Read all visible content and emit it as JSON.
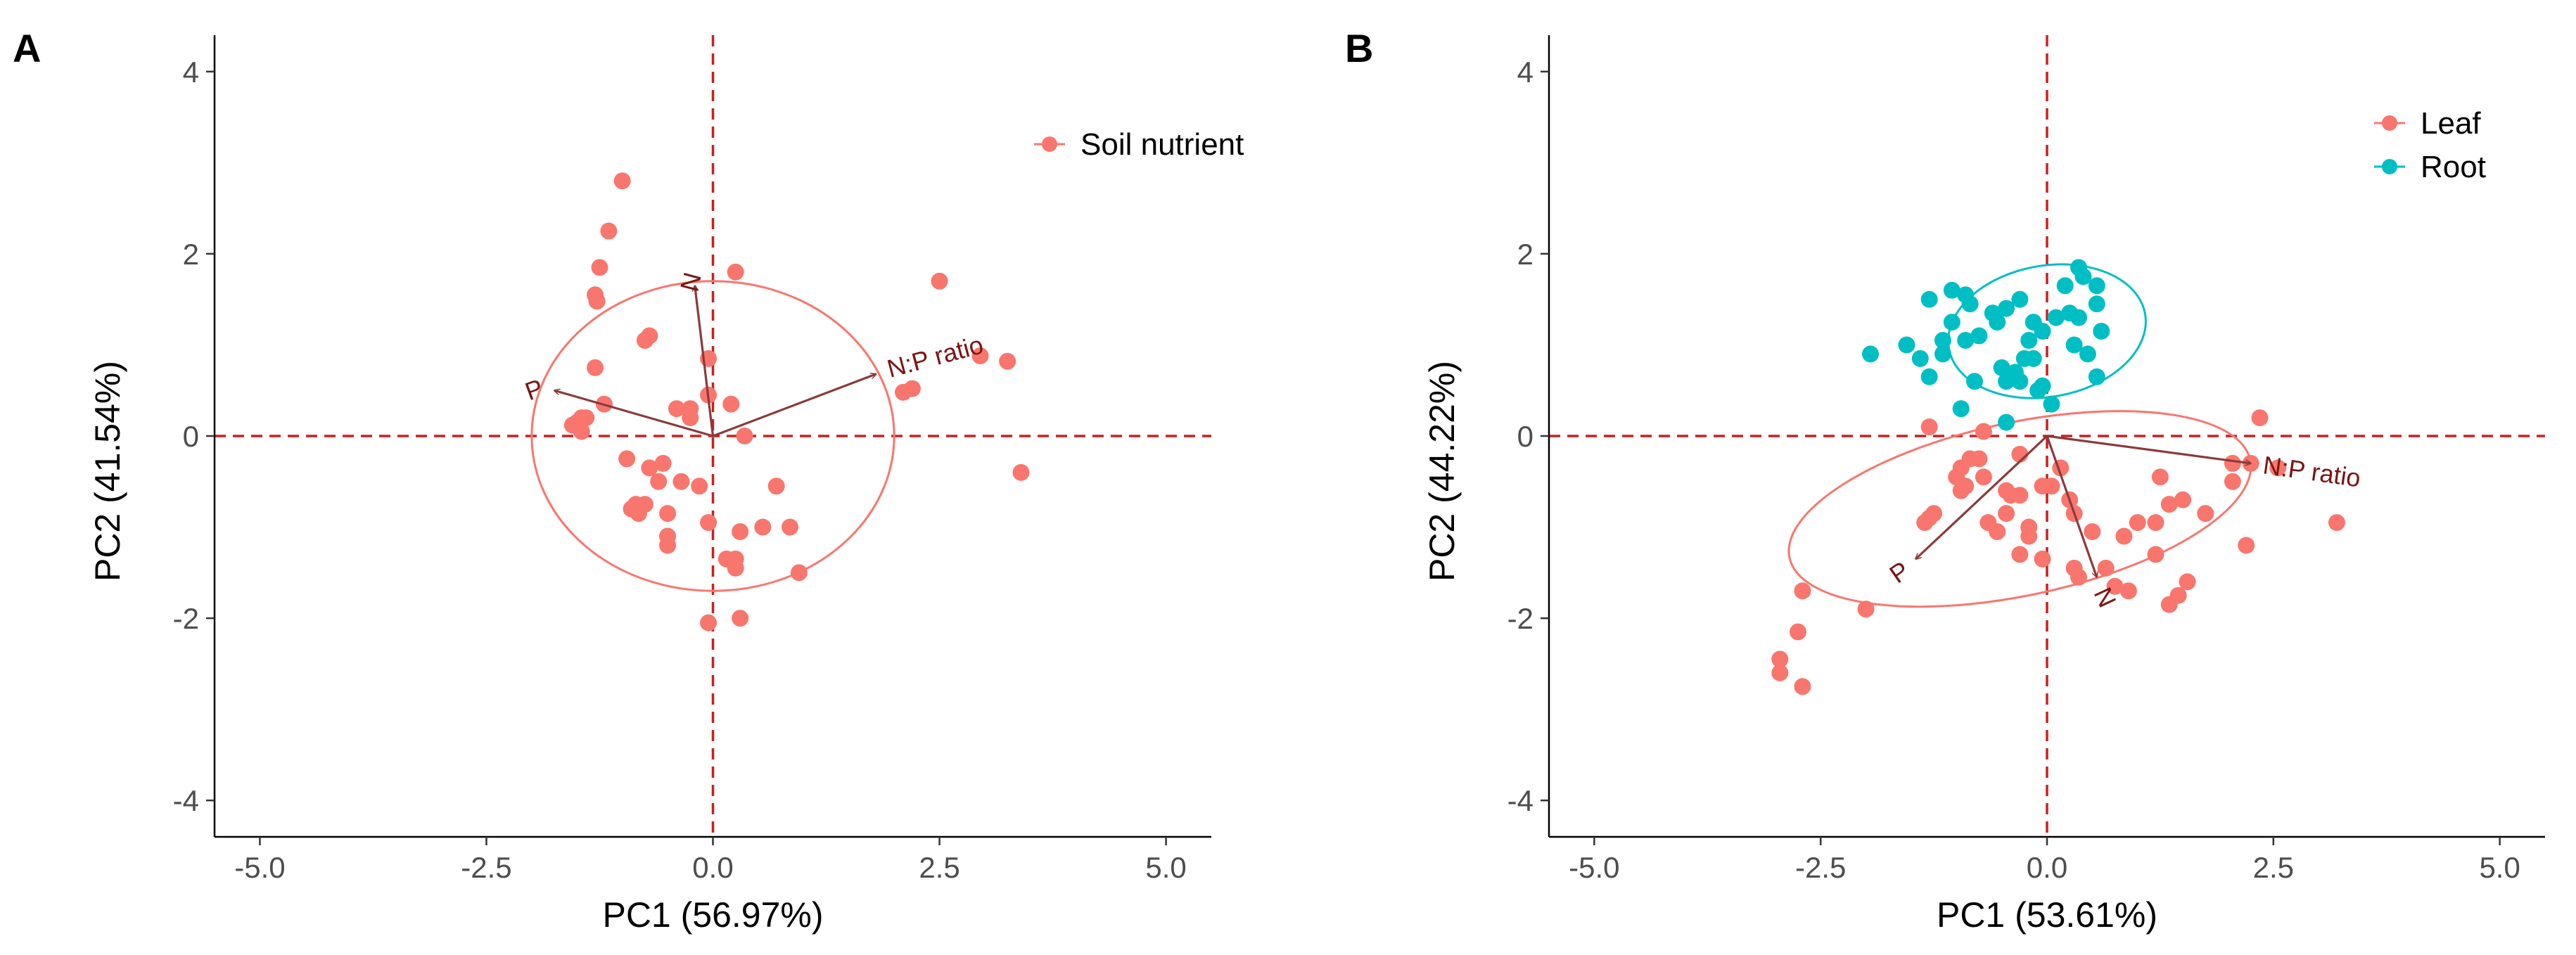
{
  "chart_data": [
    {
      "type": "scatter",
      "panel": "A",
      "xlabel": "PC1 (56.97%)",
      "ylabel": "PC2 (41.54%)",
      "xlim": [
        -5.5,
        5.5
      ],
      "ylim": [
        -4.4,
        4.4
      ],
      "xticks": [
        -5.0,
        -2.5,
        0.0,
        2.5,
        5.0
      ],
      "yticks": [
        -4,
        -2,
        0,
        2,
        4
      ],
      "xtick_labels": [
        "-5.0",
        "-2.5",
        "0.0",
        "2.5",
        "5.0"
      ],
      "ytick_labels": [
        "-4",
        "-2",
        "0",
        "2",
        "4"
      ],
      "reference_lines": {
        "x": 0,
        "y": 0,
        "color": "#cc0000",
        "style": "dashed"
      },
      "legend_position": "top-right",
      "series": [
        {
          "name": "Soil nutrient",
          "color": "#f8766d",
          "points": [
            [
              -1.0,
              2.8
            ],
            [
              -1.15,
              2.25
            ],
            [
              -1.25,
              1.85
            ],
            [
              -1.3,
              1.55
            ],
            [
              -1.28,
              1.48
            ],
            [
              -1.3,
              0.75
            ],
            [
              -1.2,
              0.35
            ],
            [
              -1.45,
              0.2
            ],
            [
              -1.5,
              0.15
            ],
            [
              -1.4,
              0.2
            ],
            [
              -1.55,
              0.12
            ],
            [
              -1.45,
              0.05
            ],
            [
              -0.7,
              1.1
            ],
            [
              -0.75,
              1.05
            ],
            [
              -0.4,
              0.3
            ],
            [
              -0.25,
              0.3
            ],
            [
              -0.25,
              0.2
            ],
            [
              -0.95,
              -0.25
            ],
            [
              -0.55,
              -0.3
            ],
            [
              -0.7,
              -0.35
            ],
            [
              -0.6,
              -0.5
            ],
            [
              -0.35,
              -0.5
            ],
            [
              -0.85,
              -0.75
            ],
            [
              -0.9,
              -0.8
            ],
            [
              -0.82,
              -0.85
            ],
            [
              -0.75,
              -0.75
            ],
            [
              -0.5,
              -0.85
            ],
            [
              -0.5,
              -1.1
            ],
            [
              -0.5,
              -1.2
            ],
            [
              -0.15,
              -0.55
            ],
            [
              0.2,
              0.35
            ],
            [
              0.35,
              0.0
            ],
            [
              0.25,
              1.8
            ],
            [
              -0.05,
              0.85
            ],
            [
              -0.05,
              0.45
            ],
            [
              -0.05,
              -0.95
            ],
            [
              0.15,
              -1.35
            ],
            [
              0.25,
              -1.35
            ],
            [
              0.25,
              -1.45
            ],
            [
              0.3,
              -1.05
            ],
            [
              0.55,
              -1.0
            ],
            [
              0.7,
              -0.55
            ],
            [
              0.85,
              -1.0
            ],
            [
              0.95,
              -1.5
            ],
            [
              -0.05,
              -2.05
            ],
            [
              0.3,
              -2.0
            ],
            [
              2.1,
              0.48
            ],
            [
              2.2,
              0.52
            ],
            [
              2.5,
              1.7
            ],
            [
              2.95,
              0.88
            ],
            [
              3.25,
              0.82
            ],
            [
              3.4,
              -0.4
            ]
          ]
        }
      ],
      "ellipses": [
        {
          "series": "Soil nutrient",
          "center": [
            0.0,
            0.0
          ],
          "semi_x": 2.0,
          "semi_y": 1.7,
          "color": "#f8766d"
        }
      ],
      "loadings": [
        {
          "label": "N",
          "x": -0.2,
          "y": 1.65
        },
        {
          "label": "P",
          "x": -1.75,
          "y": 0.5
        },
        {
          "label": "N:P ratio",
          "x": 1.8,
          "y": 0.68
        }
      ],
      "loading_label_angles_deg": [
        -75,
        -20,
        -15
      ],
      "loading_color": "#8b3a3a"
    },
    {
      "type": "scatter",
      "panel": "B",
      "xlabel": "PC1 (53.61%)",
      "ylabel": "PC2 (44.22%)",
      "xlim": [
        -5.5,
        5.5
      ],
      "ylim": [
        -4.4,
        4.4
      ],
      "xticks": [
        -5.0,
        -2.5,
        0.0,
        2.5,
        5.0
      ],
      "yticks": [
        -4,
        -2,
        0,
        2,
        4
      ],
      "xtick_labels": [
        "-5.0",
        "-2.5",
        "0.0",
        "2.5",
        "5.0"
      ],
      "ytick_labels": [
        "-4",
        "-2",
        "0",
        "2",
        "4"
      ],
      "reference_lines": {
        "x": 0,
        "y": 0,
        "color": "#cc0000",
        "style": "dashed"
      },
      "legend_position": "top-right",
      "series": [
        {
          "name": "Leaf",
          "color": "#f8766d",
          "points": [
            [
              -1.3,
              -0.9
            ],
            [
              -1.25,
              -0.85
            ],
            [
              -1.0,
              -0.45
            ],
            [
              -0.9,
              -0.55
            ],
            [
              -0.95,
              -0.35
            ],
            [
              -0.7,
              -0.45
            ],
            [
              -0.85,
              -0.25
            ],
            [
              -0.75,
              -0.25
            ],
            [
              -0.3,
              -0.2
            ],
            [
              -0.45,
              -0.6
            ],
            [
              -0.4,
              -0.65
            ],
            [
              -0.3,
              -0.65
            ],
            [
              -0.45,
              -0.85
            ],
            [
              -0.65,
              -0.95
            ],
            [
              -0.55,
              -1.05
            ],
            [
              -0.2,
              -1.0
            ],
            [
              -0.2,
              -1.1
            ],
            [
              -0.3,
              -1.3
            ],
            [
              -0.05,
              -0.55
            ],
            [
              0.05,
              -0.55
            ],
            [
              0.15,
              -0.35
            ],
            [
              0.25,
              -0.7
            ],
            [
              0.3,
              -0.85
            ],
            [
              0.5,
              -1.05
            ],
            [
              0.3,
              -1.45
            ],
            [
              0.35,
              -1.55
            ],
            [
              0.65,
              -1.45
            ],
            [
              0.75,
              -1.65
            ],
            [
              0.9,
              -1.7
            ],
            [
              0.85,
              -1.1
            ],
            [
              1.0,
              -0.95
            ],
            [
              1.2,
              -0.95
            ],
            [
              1.35,
              -0.75
            ],
            [
              1.2,
              -1.3
            ],
            [
              1.35,
              -1.85
            ],
            [
              1.45,
              -1.75
            ],
            [
              1.5,
              -0.7
            ],
            [
              1.75,
              -0.85
            ],
            [
              2.05,
              -0.3
            ],
            [
              2.05,
              -0.5
            ],
            [
              2.25,
              -0.3
            ],
            [
              2.55,
              -0.35
            ],
            [
              2.35,
              0.2
            ],
            [
              3.2,
              -0.95
            ],
            [
              2.2,
              -1.2
            ],
            [
              1.55,
              -1.6
            ],
            [
              1.25,
              -0.45
            ],
            [
              -0.05,
              -1.35
            ],
            [
              -1.35,
              -0.95
            ],
            [
              -2.0,
              -1.9
            ],
            [
              -2.7,
              -1.7
            ],
            [
              -2.75,
              -2.15
            ],
            [
              -2.95,
              -2.45
            ],
            [
              -2.95,
              -2.6
            ],
            [
              -2.7,
              -2.75
            ],
            [
              -1.3,
              0.1
            ],
            [
              -0.95,
              -0.6
            ],
            [
              -0.7,
              0.05
            ]
          ]
        },
        {
          "name": "Root",
          "color": "#00bfc4",
          "points": [
            [
              -1.55,
              1.0
            ],
            [
              -1.15,
              1.05
            ],
            [
              -0.9,
              1.05
            ],
            [
              -1.05,
              1.25
            ],
            [
              -0.85,
              1.45
            ],
            [
              -0.6,
              1.35
            ],
            [
              -0.55,
              1.25
            ],
            [
              -0.75,
              1.1
            ],
            [
              -1.3,
              1.5
            ],
            [
              -1.05,
              1.6
            ],
            [
              -0.9,
              1.55
            ],
            [
              -0.45,
              1.4
            ],
            [
              -0.3,
              1.5
            ],
            [
              -0.15,
              1.25
            ],
            [
              0.1,
              1.3
            ],
            [
              0.35,
              1.3
            ],
            [
              0.25,
              1.35
            ],
            [
              0.55,
              1.45
            ],
            [
              0.6,
              1.15
            ],
            [
              0.35,
              1.85
            ],
            [
              0.4,
              1.75
            ],
            [
              0.55,
              1.65
            ],
            [
              0.2,
              1.65
            ],
            [
              -0.05,
              1.15
            ],
            [
              -0.2,
              1.05
            ],
            [
              -0.25,
              0.85
            ],
            [
              -0.5,
              0.75
            ],
            [
              -0.35,
              0.7
            ],
            [
              -0.45,
              0.6
            ],
            [
              -0.3,
              0.6
            ],
            [
              -0.1,
              0.5
            ],
            [
              -0.05,
              0.55
            ],
            [
              0.05,
              0.35
            ],
            [
              0.3,
              1.0
            ],
            [
              0.45,
              0.9
            ],
            [
              0.55,
              0.65
            ],
            [
              -0.8,
              0.6
            ],
            [
              -1.15,
              0.9
            ],
            [
              -1.4,
              0.85
            ],
            [
              -1.3,
              0.65
            ],
            [
              -0.95,
              0.3
            ],
            [
              -0.45,
              0.15
            ],
            [
              -1.95,
              0.9
            ],
            [
              -0.15,
              0.85
            ]
          ]
        }
      ],
      "ellipses": [
        {
          "series": "Root",
          "center": [
            0.0,
            1.15
          ],
          "semi_x": 1.1,
          "semi_y": 0.72,
          "rotation_deg": -10,
          "color": "#00bfc4"
        },
        {
          "series": "Leaf",
          "center": [
            -0.3,
            -0.8
          ],
          "semi_x": 2.6,
          "semi_y": 0.95,
          "rotation_deg": -12,
          "color": "#f8766d"
        }
      ],
      "loadings": [
        {
          "label": "N:P ratio",
          "x": 2.25,
          "y": -0.3
        },
        {
          "label": "P",
          "x": -1.45,
          "y": -1.35
        },
        {
          "label": "N",
          "x": 0.55,
          "y": -1.55
        }
      ],
      "loading_label_angles_deg": [
        8,
        -35,
        65
      ],
      "loading_color": "#8b3a3a"
    }
  ]
}
